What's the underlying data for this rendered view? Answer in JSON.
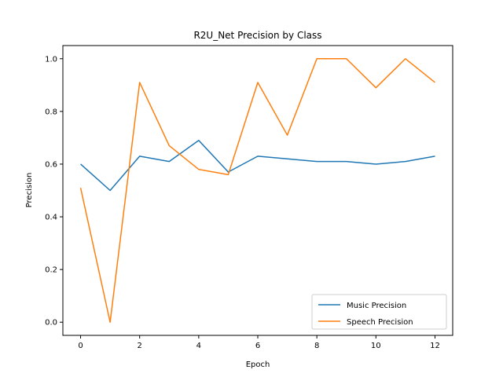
{
  "chart_data": {
    "type": "line",
    "title": "R2U_Net Precision by Class",
    "xlabel": "Epoch",
    "ylabel": "Precision",
    "xlim": [
      -0.6,
      12.6
    ],
    "ylim": [
      -0.05,
      1.05
    ],
    "xticks": [
      0,
      2,
      4,
      6,
      8,
      10,
      12
    ],
    "yticks": [
      0.0,
      0.2,
      0.4,
      0.6,
      0.8,
      1.0
    ],
    "ytick_labels": [
      "0.0",
      "0.2",
      "0.4",
      "0.6",
      "0.8",
      "1.0"
    ],
    "grid": false,
    "legend_position": "lower-right",
    "x": [
      0,
      1,
      2,
      3,
      4,
      5,
      6,
      7,
      8,
      9,
      10,
      11,
      12
    ],
    "series": [
      {
        "name": "Music Precision",
        "color": "#1f77b4",
        "values": [
          0.6,
          0.5,
          0.63,
          0.61,
          0.69,
          0.57,
          0.63,
          0.62,
          0.61,
          0.61,
          0.6,
          0.61,
          0.63
        ]
      },
      {
        "name": "Speech Precision",
        "color": "#ff7f0e",
        "values": [
          0.51,
          0.0,
          0.91,
          0.67,
          0.58,
          0.56,
          0.91,
          0.71,
          1.0,
          1.0,
          0.89,
          1.0,
          0.91
        ]
      }
    ]
  }
}
